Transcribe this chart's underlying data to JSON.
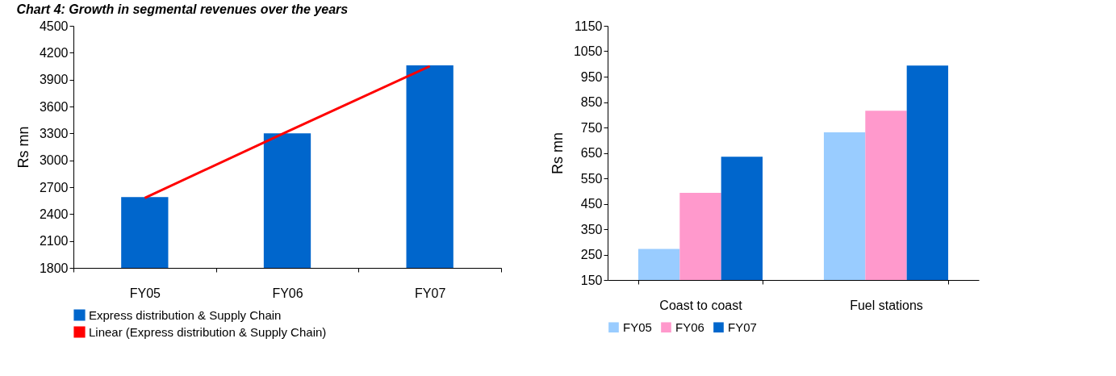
{
  "chart_data": [
    {
      "type": "bar",
      "title": "Chart 4: Growth in segmental revenues over the years",
      "ylabel": "Rs mn",
      "categories": [
        "FY05",
        "FY06",
        "FY07"
      ],
      "series": [
        {
          "name": "Express distribution & Supply Chain",
          "color": "#0066cc",
          "values": [
            2590,
            3300,
            4060
          ]
        },
        {
          "name": "Linear (Express distribution & Supply Chain)",
          "type": "line",
          "color": "#ff0000",
          "values": [
            2580,
            3320,
            4050
          ]
        }
      ],
      "ylim": [
        1800,
        4500
      ],
      "yticks": [
        1800,
        2100,
        2400,
        2700,
        3000,
        3300,
        3600,
        3900,
        4200,
        4500
      ],
      "legend": "bottom",
      "grid": false
    },
    {
      "type": "bar",
      "ylabel": "Rs mn",
      "categories": [
        "Coast to coast",
        "Fuel stations"
      ],
      "series": [
        {
          "name": "FY05",
          "color": "#99ccff",
          "values": [
            272,
            731
          ]
        },
        {
          "name": "FY06",
          "color": "#ff99cc",
          "values": [
            493,
            816
          ]
        },
        {
          "name": "FY07",
          "color": "#0066cc",
          "values": [
            635,
            994
          ]
        }
      ],
      "ylim": [
        150,
        1150
      ],
      "yticks": [
        150,
        250,
        350,
        450,
        550,
        650,
        750,
        850,
        950,
        1050,
        1150
      ],
      "legend": "bottom",
      "grid": false
    }
  ]
}
